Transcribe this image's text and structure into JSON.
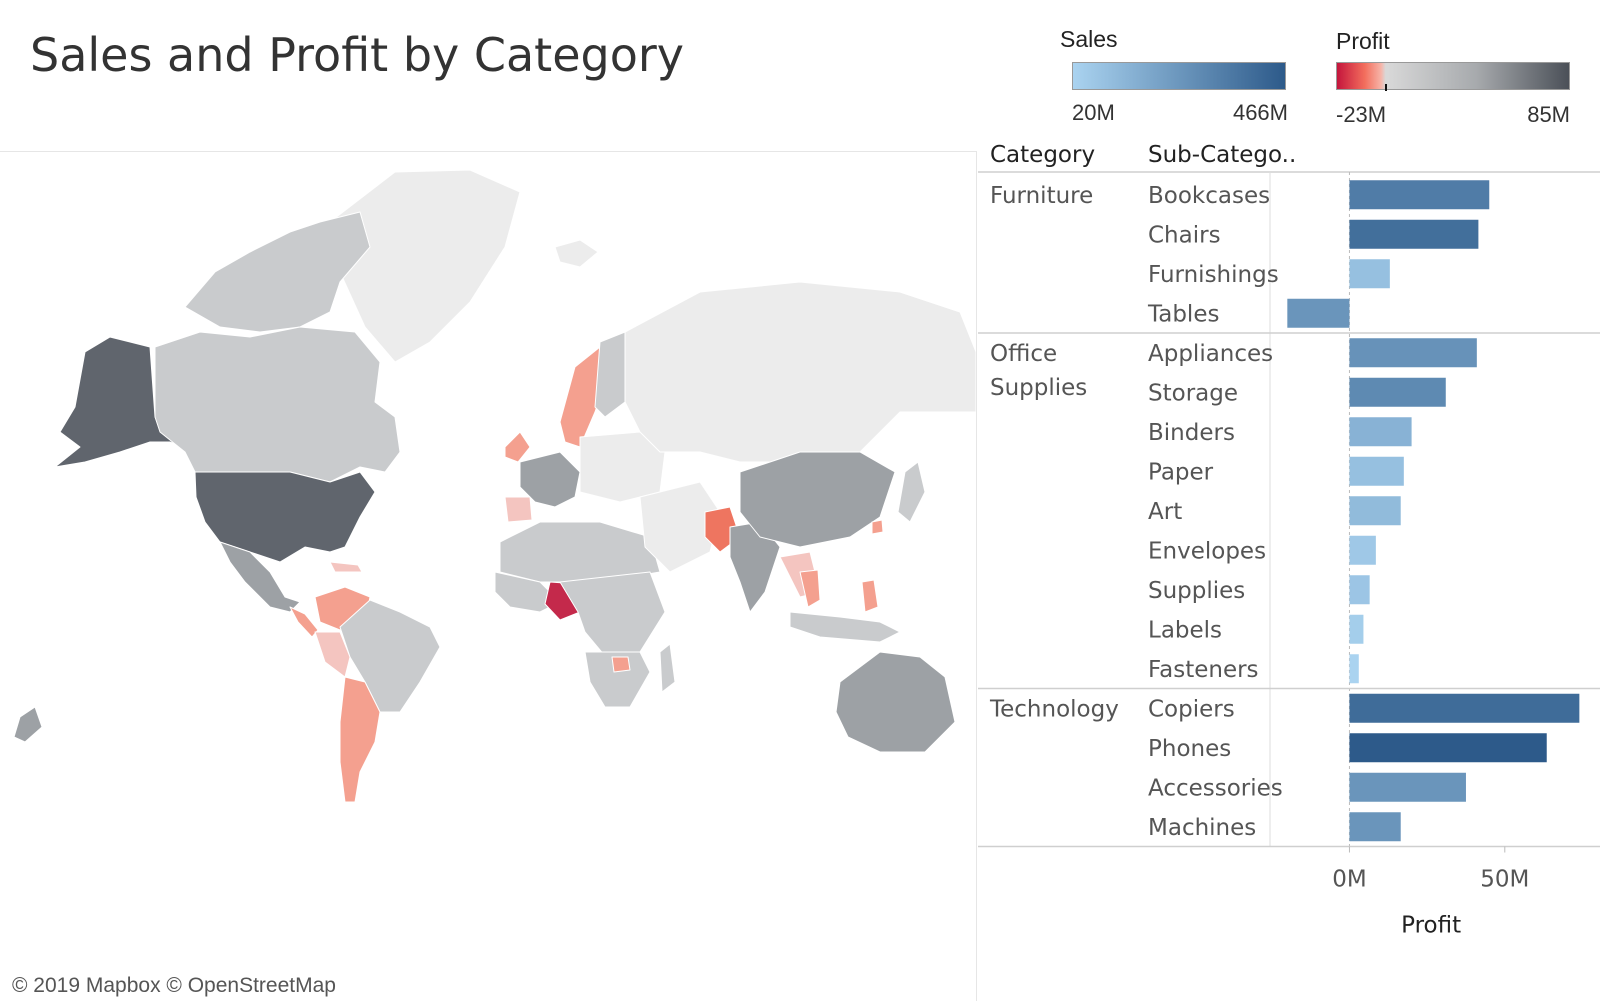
{
  "title": "Sales and Profit by Category",
  "legends": {
    "sales": {
      "title": "Sales",
      "min_label": "20M",
      "max_label": "466M",
      "color_low": "#aad3f0",
      "color_high": "#2d5a8a"
    },
    "profit": {
      "title": "Profit",
      "min_label": "-23M",
      "max_label": "85M",
      "color_neg": "#c4153c",
      "color_mid": "#d9d9d9",
      "color_high": "#4b5058"
    }
  },
  "map": {
    "attribution": "© 2019 Mapbox © OpenStreetMap",
    "colors": {
      "ocean": "#ffffff",
      "land_nodata": "#ececec",
      "border": "#ffffff",
      "very_high": "#60656d",
      "high": "#9da1a5",
      "mid": "#c9cbcd",
      "neg_light": "#f4c5c0",
      "neg": "#f4a08f",
      "neg_strong": "#ee7560",
      "neg_max": "#c4294b"
    }
  },
  "chart_data": {
    "type": "bar",
    "orientation": "horizontal",
    "header": {
      "category": "Category",
      "subcategory": "Sub-Catego.."
    },
    "xlabel": "Profit",
    "xlim": [
      -23,
      80
    ],
    "xticks": [
      {
        "value": 0,
        "label": "0M"
      },
      {
        "value": 50,
        "label": "50M"
      }
    ],
    "groups": [
      {
        "category": "Furniture",
        "category_lines": [
          "Furniture"
        ],
        "items": [
          {
            "subcategory": "Bookcases",
            "profit": 45,
            "sales": 340
          },
          {
            "subcategory": "Chairs",
            "profit": 41.5,
            "sales": 390
          },
          {
            "subcategory": "Furnishings",
            "profit": 13,
            "sales": 90
          },
          {
            "subcategory": "Tables",
            "profit": -20,
            "sales": 250
          }
        ]
      },
      {
        "category": "Office Supplies",
        "category_lines": [
          "Office",
          "Supplies"
        ],
        "items": [
          {
            "subcategory": "Appliances",
            "profit": 41,
            "sales": 260
          },
          {
            "subcategory": "Storage",
            "profit": 31,
            "sales": 290
          },
          {
            "subcategory": "Binders",
            "profit": 20,
            "sales": 140
          },
          {
            "subcategory": "Paper",
            "profit": 17.5,
            "sales": 90
          },
          {
            "subcategory": "Art",
            "profit": 16.5,
            "sales": 110
          },
          {
            "subcategory": "Envelopes",
            "profit": 8.5,
            "sales": 60
          },
          {
            "subcategory": "Supplies",
            "profit": 6.5,
            "sales": 70
          },
          {
            "subcategory": "Labels",
            "profit": 4.5,
            "sales": 40
          },
          {
            "subcategory": "Fasteners",
            "profit": 3,
            "sales": 20
          }
        ]
      },
      {
        "category": "Technology",
        "category_lines": [
          "Technology"
        ],
        "items": [
          {
            "subcategory": "Copiers",
            "profit": 74,
            "sales": 400
          },
          {
            "subcategory": "Phones",
            "profit": 63.5,
            "sales": 466
          },
          {
            "subcategory": "Accessories",
            "profit": 37.5,
            "sales": 250
          },
          {
            "subcategory": "Machines",
            "profit": 16.5,
            "sales": 250
          }
        ]
      }
    ]
  }
}
